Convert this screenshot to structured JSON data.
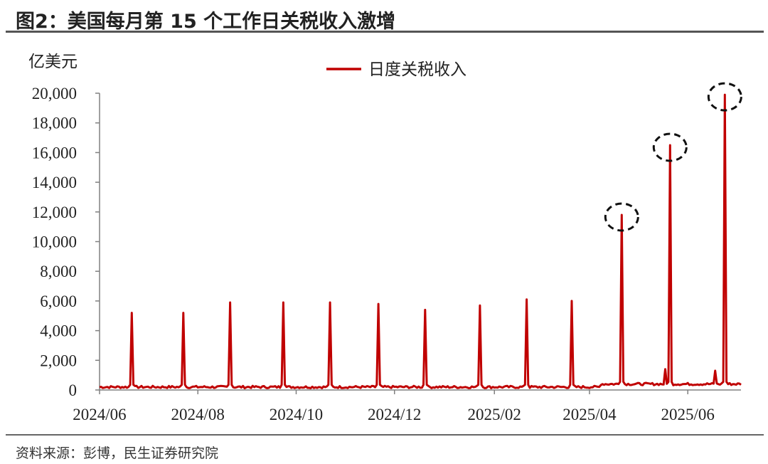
{
  "figure": {
    "title": "图2：美国每月第 15 个工作日关税收入激增",
    "source": "资料来源：彭博，民生证券研究院"
  },
  "colors": {
    "series": "#c00000",
    "axis": "#808080",
    "rule": "#555555",
    "highlight": "#111111"
  },
  "chart_data": {
    "type": "line",
    "unit_label": "亿美元",
    "legend": [
      "日度关税收入"
    ],
    "legend_position": "top-center",
    "grid": false,
    "ylim": [
      0,
      20000
    ],
    "y_ticks": [
      "20,000",
      "18,000",
      "16,000",
      "14,000",
      "12,000",
      "10,000",
      "8,000",
      "6,000",
      "4,000",
      "2,000",
      "0"
    ],
    "x_range": [
      "2024-06-01",
      "2025-07-04"
    ],
    "x_ticks": [
      "2024/06",
      "2024/08",
      "2024/10",
      "2024/12",
      "2025/02",
      "2025/04",
      "2025/06"
    ],
    "baseline": 200,
    "series": [
      {
        "name": "日度关税收入",
        "spikes": [
          {
            "date": "2024-06-21",
            "value": 5200
          },
          {
            "date": "2024-07-23",
            "value": 5200
          },
          {
            "date": "2024-08-21",
            "value": 5900
          },
          {
            "date": "2024-09-23",
            "value": 5900
          },
          {
            "date": "2024-10-22",
            "value": 5900
          },
          {
            "date": "2024-11-21",
            "value": 5800
          },
          {
            "date": "2024-12-20",
            "value": 5400
          },
          {
            "date": "2025-01-23",
            "value": 5700
          },
          {
            "date": "2025-02-21",
            "value": 6100
          },
          {
            "date": "2025-03-21",
            "value": 6000
          },
          {
            "date": "2025-04-21",
            "value": 11800
          },
          {
            "date": "2025-05-21",
            "value": 16500
          },
          {
            "date": "2025-06-24",
            "value": 19900
          }
        ],
        "minor_bumps": [
          {
            "date": "2025-05-18",
            "value": 1400
          },
          {
            "date": "2025-06-18",
            "value": 1300
          }
        ],
        "late_baseline": 400,
        "late_baseline_from": "2025-04-08"
      }
    ],
    "highlighted": [
      "2025-04-21",
      "2025-05-21",
      "2025-06-24"
    ]
  }
}
